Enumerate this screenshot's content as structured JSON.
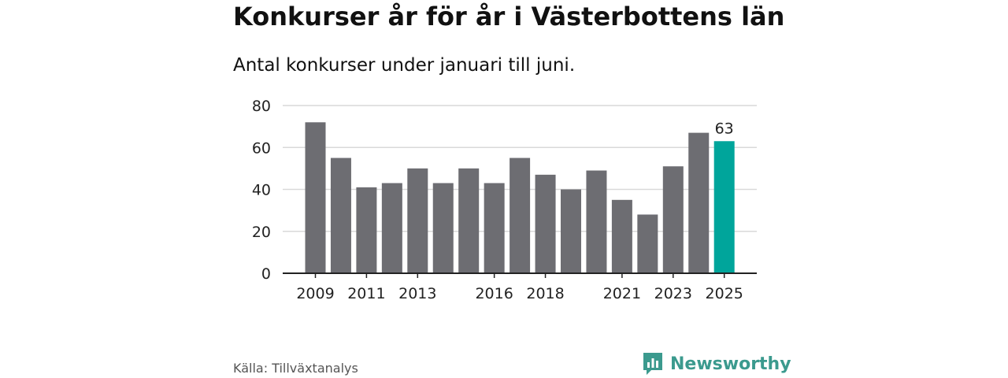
{
  "title": "Konkurser år för år i Västerbottens län",
  "subtitle": "Antal konkurser under januari till juni.",
  "source": "Källa: Tillväxtanalys",
  "brand": {
    "name": "Newsworthy",
    "icon": "newsworthy-logo-icon"
  },
  "colors": {
    "bar": "#6d6d72",
    "highlight": "#00a59b",
    "grid": "#d9d9d9",
    "axis": "#222222",
    "brand": "#3b9a8e"
  },
  "chart_data": {
    "type": "bar",
    "categories": [
      "2009",
      "2010",
      "2011",
      "2012",
      "2013",
      "2014",
      "2015",
      "2016",
      "2017",
      "2018",
      "2019",
      "2020",
      "2021",
      "2022",
      "2023",
      "2024",
      "2025"
    ],
    "values": [
      72,
      55,
      41,
      43,
      50,
      43,
      50,
      43,
      55,
      47,
      40,
      49,
      35,
      28,
      51,
      67,
      63
    ],
    "highlight_index": 16,
    "data_labels": [
      {
        "index": 16,
        "text": "63"
      }
    ],
    "xtick_labels": [
      "2009",
      "2011",
      "2013",
      "2016",
      "2018",
      "2021",
      "2023",
      "2025"
    ],
    "yticks": [
      0,
      20,
      40,
      60,
      80
    ],
    "ylim": [
      0,
      80
    ],
    "xlabel": "",
    "ylabel": "",
    "grid": true,
    "legend": "none"
  }
}
